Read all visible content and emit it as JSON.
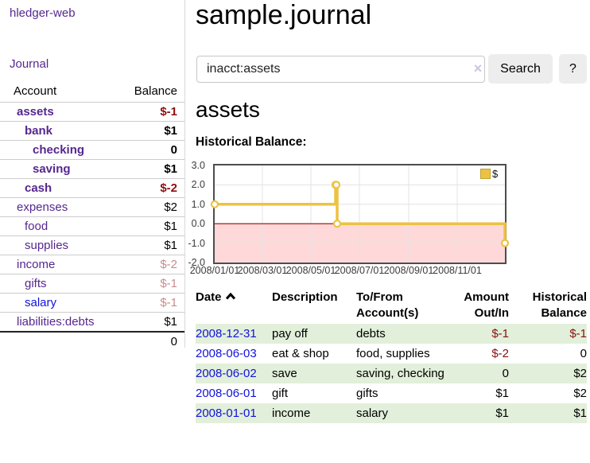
{
  "colors": {
    "link_purple": "#56278f",
    "link_blue": "#1212dd",
    "negative": "#8b0f0f",
    "negative_dim": "#c98c8c",
    "stripe_green": "#e2efda",
    "chart_line": "#edc240"
  },
  "app": {
    "title": "hledger-web"
  },
  "sidebar": {
    "journal_link": "Journal",
    "accounts": {
      "headers": {
        "account": "Account",
        "balance": "Balance"
      },
      "rows": [
        {
          "name": "assets",
          "balance": "$-1",
          "level": 1,
          "bold": true,
          "name_color": "purple",
          "balance_color": "neg"
        },
        {
          "name": "bank",
          "balance": "$1",
          "level": 2,
          "bold": true,
          "name_color": "purple",
          "balance_color": "pos"
        },
        {
          "name": "checking",
          "balance": "0",
          "level": 3,
          "bold": true,
          "name_color": "purple",
          "balance_color": "pos"
        },
        {
          "name": "saving",
          "balance": "$1",
          "level": 3,
          "bold": true,
          "name_color": "purple",
          "balance_color": "pos"
        },
        {
          "name": "cash",
          "balance": "$-2",
          "level": 2,
          "bold": true,
          "name_color": "purple",
          "balance_color": "neg"
        },
        {
          "name": "expenses",
          "balance": "$2",
          "level": 1,
          "bold": false,
          "name_color": "purple",
          "balance_color": "pos"
        },
        {
          "name": "food",
          "balance": "$1",
          "level": 2,
          "bold": false,
          "name_color": "purple",
          "balance_color": "pos"
        },
        {
          "name": "supplies",
          "balance": "$1",
          "level": 2,
          "bold": false,
          "name_color": "purple",
          "balance_color": "pos"
        },
        {
          "name": "income",
          "balance": "$-2",
          "level": 1,
          "bold": false,
          "name_color": "purple",
          "balance_color": "dim-neg"
        },
        {
          "name": "gifts",
          "balance": "$-1",
          "level": 2,
          "bold": false,
          "name_color": "purple",
          "balance_color": "dim-neg"
        },
        {
          "name": "salary",
          "balance": "$-1",
          "level": 2,
          "bold": false,
          "name_color": "blue",
          "balance_color": "dim-neg"
        },
        {
          "name": "liabilities:debts",
          "balance": "$1",
          "level": 1,
          "bold": false,
          "name_color": "purple",
          "balance_color": "pos"
        }
      ],
      "total": "0"
    }
  },
  "header": {
    "title": "sample.journal"
  },
  "search": {
    "value": "inacct:assets",
    "clear_icon": "×",
    "search_button": "Search",
    "help_button": "?"
  },
  "account_page": {
    "heading": "assets",
    "chart_title": "Historical Balance:"
  },
  "chart_data": {
    "type": "line",
    "style": "steps",
    "title": "Historical Balance",
    "legend_label": "$",
    "legend_position": "top-right",
    "series": [
      {
        "name": "$",
        "color": "#edc240",
        "points": [
          {
            "date": "2008-01-01",
            "value": 1
          },
          {
            "date": "2008-06-01",
            "value": 2
          },
          {
            "date": "2008-06-02",
            "value": 2
          },
          {
            "date": "2008-06-03",
            "value": 0
          },
          {
            "date": "2008-12-31",
            "value": -1
          }
        ]
      }
    ],
    "x_start": "2008-01-01",
    "x_end": "2008-12-31",
    "x_tick_dates": [
      "2008-01-01",
      "2008-03-01",
      "2008-05-01",
      "2008-07-01",
      "2008-09-01",
      "2008-11-01"
    ],
    "x_tick_labels": [
      "2008/01/01",
      "2008/03/01",
      "2008/05/01",
      "2008/07/01",
      "2008/09/01",
      "2008/11/01"
    ],
    "y_ticks": [
      "3.0",
      "2.0",
      "1.0",
      "0.0",
      "-1.0",
      "-2.0"
    ],
    "ylim": [
      -2,
      3
    ],
    "grid": true,
    "negative_fill": "#ffd9d9",
    "zero_line_color": "#a00000",
    "grid_color": "#e3e3e3",
    "border_color": "#4d4d4d"
  },
  "register": {
    "headers": {
      "date": "Date",
      "description": "Description",
      "accounts": "To/From Account(s)",
      "amount": "Amount Out/In",
      "balance": "Historical Balance"
    },
    "rows": [
      {
        "date": "2008-12-31",
        "description": "pay off",
        "accounts": "debts",
        "amount": "$-1",
        "amount_neg": true,
        "balance": "$-1",
        "balance_neg": true
      },
      {
        "date": "2008-06-03",
        "description": "eat & shop",
        "accounts": "food, supplies",
        "amount": "$-2",
        "amount_neg": true,
        "balance": "0",
        "balance_neg": false
      },
      {
        "date": "2008-06-02",
        "description": "save",
        "accounts": "saving, checking",
        "amount": "0",
        "amount_neg": false,
        "balance": "$2",
        "balance_neg": false
      },
      {
        "date": "2008-06-01",
        "description": "gift",
        "accounts": "gifts",
        "amount": "$1",
        "amount_neg": false,
        "balance": "$2",
        "balance_neg": false
      },
      {
        "date": "2008-01-01",
        "description": "income",
        "accounts": "salary",
        "amount": "$1",
        "amount_neg": false,
        "balance": "$1",
        "balance_neg": false
      }
    ]
  }
}
